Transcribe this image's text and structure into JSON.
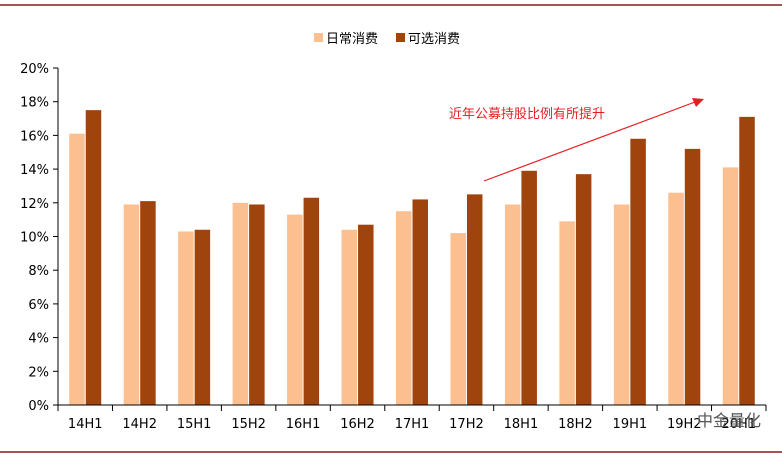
{
  "chart_data": {
    "type": "bar",
    "categories": [
      "14H1",
      "14H2",
      "15H1",
      "15H2",
      "16H1",
      "16H2",
      "17H1",
      "17H2",
      "18H1",
      "18H2",
      "19H1",
      "19H2",
      "20H1"
    ],
    "series": [
      {
        "name": "日常消费",
        "color": "#fbbf90",
        "values": [
          16.1,
          11.9,
          10.3,
          12.0,
          11.3,
          10.4,
          11.5,
          10.2,
          11.9,
          10.9,
          11.9,
          12.6,
          14.1
        ]
      },
      {
        "name": "可选消费",
        "color": "#a0440e",
        "values": [
          17.5,
          12.1,
          10.4,
          11.9,
          12.3,
          10.7,
          12.2,
          12.5,
          13.9,
          13.7,
          15.8,
          15.2,
          17.1
        ]
      }
    ],
    "ylim": [
      0,
      20
    ],
    "yticks": [
      "0%",
      "2%",
      "4%",
      "6%",
      "8%",
      "10%",
      "12%",
      "14%",
      "16%",
      "18%",
      "20%"
    ],
    "legend_position": "top",
    "annotation": {
      "text": "近年公募持股比例有所提升",
      "color": "#e41f23"
    },
    "border_color": "#8b1a1a"
  },
  "watermark": {
    "text": "中金量化"
  }
}
